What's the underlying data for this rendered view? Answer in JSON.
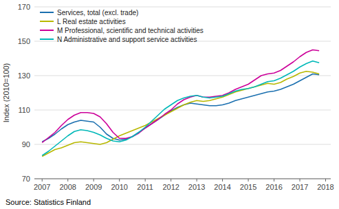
{
  "chart_data": {
    "type": "line",
    "ylabel": "Index (2010=100)",
    "source": "Source: Statistics Finland",
    "xlim": [
      2006.7,
      2018.2
    ],
    "ylim": [
      70,
      170
    ],
    "xticks": [
      2007,
      2008,
      2009,
      2010,
      2011,
      2012,
      2013,
      2014,
      2015,
      2016,
      2017,
      2018
    ],
    "yticks": [
      70,
      90,
      110,
      130,
      150,
      170
    ],
    "grid": true,
    "legend": "upper left",
    "x": [
      2007.0,
      2007.25,
      2007.5,
      2007.75,
      2008.0,
      2008.25,
      2008.5,
      2008.75,
      2009.0,
      2009.25,
      2009.5,
      2009.75,
      2010.0,
      2010.25,
      2010.5,
      2010.75,
      2011.0,
      2011.25,
      2011.5,
      2011.75,
      2012.0,
      2012.25,
      2012.5,
      2012.75,
      2013.0,
      2013.25,
      2013.5,
      2013.75,
      2014.0,
      2014.25,
      2014.5,
      2014.75,
      2015.0,
      2015.25,
      2015.5,
      2015.75,
      2016.0,
      2016.25,
      2016.5,
      2016.75,
      2017.0,
      2017.25,
      2017.5,
      2017.75
    ],
    "series": [
      {
        "name": "Services, total (excl. trade)",
        "color": "#1a6faf",
        "values": [
          91.5,
          93.5,
          96.0,
          99.0,
          101.5,
          103.0,
          104.0,
          103.5,
          103.0,
          100.0,
          96.0,
          93.5,
          92.5,
          93.0,
          94.5,
          97.0,
          99.5,
          102.0,
          104.5,
          107.0,
          109.5,
          111.5,
          113.0,
          114.0,
          113.5,
          113.0,
          112.5,
          112.5,
          113.0,
          114.0,
          115.5,
          116.5,
          117.5,
          118.5,
          119.5,
          120.5,
          121.0,
          122.0,
          123.5,
          125.0,
          127.0,
          129.0,
          131.0,
          130.5
        ]
      },
      {
        "name": "L Real estate activities",
        "color": "#b8b800",
        "values": [
          83.0,
          85.0,
          87.0,
          88.0,
          89.5,
          91.0,
          91.5,
          91.0,
          90.5,
          90.0,
          91.0,
          93.0,
          95.0,
          96.5,
          98.0,
          99.5,
          101.0,
          103.0,
          105.0,
          107.0,
          109.0,
          111.0,
          113.0,
          114.5,
          115.5,
          115.0,
          115.5,
          116.5,
          117.5,
          119.0,
          120.5,
          121.5,
          122.5,
          123.5,
          124.5,
          125.5,
          125.0,
          126.0,
          128.0,
          129.5,
          131.5,
          132.5,
          132.0,
          131.0
        ]
      },
      {
        "name": "M Professional, scientific and technical activities",
        "color": "#cc0099",
        "values": [
          91.0,
          94.0,
          97.0,
          101.0,
          104.5,
          107.0,
          108.5,
          108.5,
          108.0,
          106.0,
          102.0,
          97.0,
          93.5,
          93.5,
          94.5,
          96.5,
          99.5,
          102.0,
          104.5,
          107.5,
          110.0,
          113.5,
          116.0,
          117.5,
          118.5,
          117.5,
          117.5,
          118.0,
          118.5,
          120.0,
          122.0,
          123.5,
          125.0,
          127.5,
          130.0,
          131.0,
          131.5,
          133.0,
          135.5,
          138.0,
          141.0,
          143.5,
          145.0,
          144.5
        ]
      },
      {
        "name": "N Administrative and support service activities",
        "color": "#00b8b8",
        "values": [
          83.5,
          86.0,
          89.0,
          92.0,
          95.0,
          97.5,
          98.5,
          98.0,
          97.0,
          95.5,
          93.5,
          92.0,
          91.5,
          92.5,
          94.5,
          97.0,
          100.0,
          103.5,
          107.0,
          110.5,
          113.0,
          115.5,
          117.0,
          118.0,
          118.5,
          117.5,
          117.0,
          117.5,
          118.0,
          119.5,
          121.0,
          122.0,
          122.5,
          123.5,
          125.0,
          126.5,
          127.0,
          128.5,
          130.5,
          132.5,
          135.0,
          137.0,
          138.5,
          137.5
        ]
      }
    ]
  }
}
